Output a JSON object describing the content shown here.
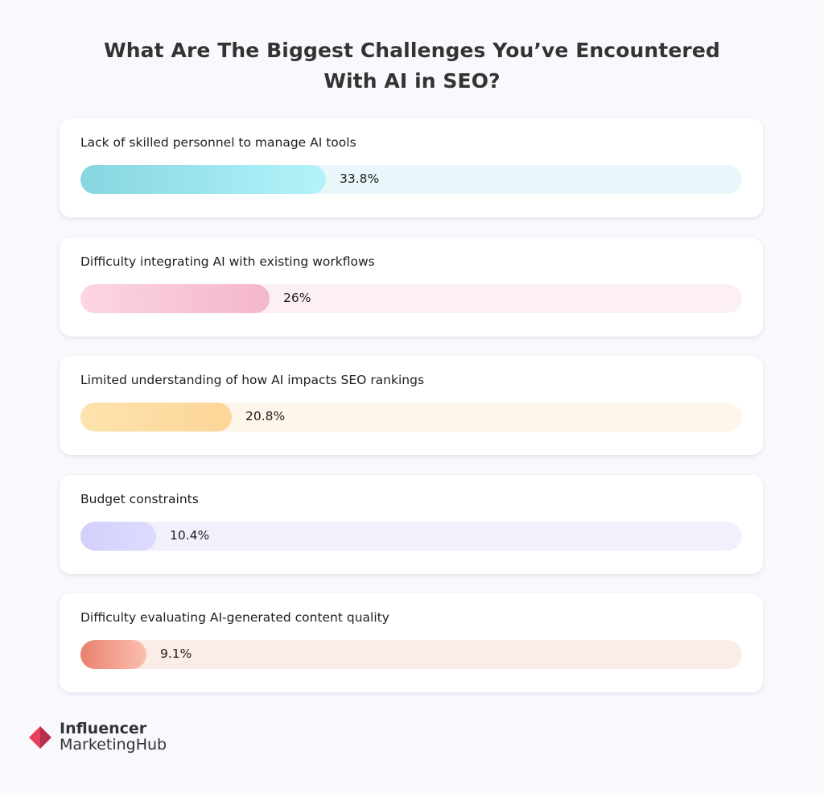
{
  "title_line1": "What Are The Biggest Challenges You’ve Encountered",
  "title_line2": "With AI in SEO?",
  "chart_data": {
    "type": "bar",
    "orientation": "horizontal",
    "title": "What Are The Biggest Challenges You’ve Encountered With AI in SEO?",
    "unit": "%",
    "xlim": [
      0,
      100
    ],
    "grid": false,
    "categories": [
      "Lack of skilled personnel to manage AI tools",
      "Difficulty integrating AI with existing workflows",
      "Limited understanding of how AI impacts SEO rankings",
      "Budget constraints",
      "Difficulty evaluating AI-generated content quality"
    ],
    "values": [
      33.8,
      26,
      20.8,
      10.4,
      9.1
    ],
    "value_labels": [
      "33.8%",
      "26%",
      "20.8%",
      "10.4%",
      "9.1%"
    ],
    "colors": [
      {
        "fill_start": "#86d6df",
        "fill_end": "#b3f3fb",
        "track": "#e9f7fa"
      },
      {
        "fill_start": "#fcd6e1",
        "fill_end": "#f4b6cb",
        "track": "#fdf0f4"
      },
      {
        "fill_start": "#fde3ae",
        "fill_end": "#fdd597",
        "track": "#fef6ea"
      },
      {
        "fill_start": "#d2d0fc",
        "fill_end": "#dddcfe",
        "track": "#f1f0fb"
      },
      {
        "fill_start": "#e8826e",
        "fill_end": "#fbbfae",
        "track": "#fbece7"
      }
    ]
  },
  "logo": {
    "line1": "Influencer",
    "line2": "MarketingHub",
    "icon": "diamond-logo-icon",
    "color_a": "#e8415c",
    "color_b": "#b72f4c"
  }
}
